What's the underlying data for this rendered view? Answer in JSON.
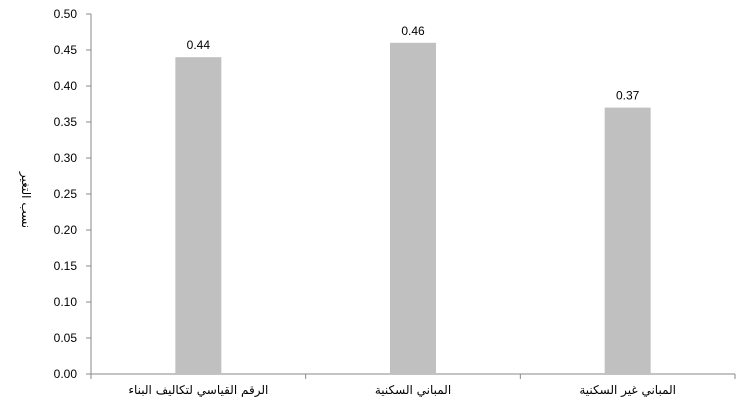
{
  "chart_data": {
    "type": "bar",
    "title": "",
    "xlabel": "",
    "ylabel": "نسب التغير",
    "categories": [
      "الرقم القياسي لتكاليف البناء",
      "المباني السكنية",
      "المباني غير السكنية"
    ],
    "values": [
      0.44,
      0.46,
      0.37
    ],
    "data_labels": [
      "0.44",
      "0.46",
      "0.37"
    ],
    "ylim": [
      0,
      0.5
    ],
    "yticks": [
      "0.00",
      "0.05",
      "0.10",
      "0.15",
      "0.20",
      "0.25",
      "0.30",
      "0.35",
      "0.40",
      "0.45",
      "0.50"
    ],
    "grid": false,
    "legend": "none",
    "colors": {
      "bar": "#c0c0c0",
      "axis": "#888888",
      "text": "#000000"
    }
  }
}
